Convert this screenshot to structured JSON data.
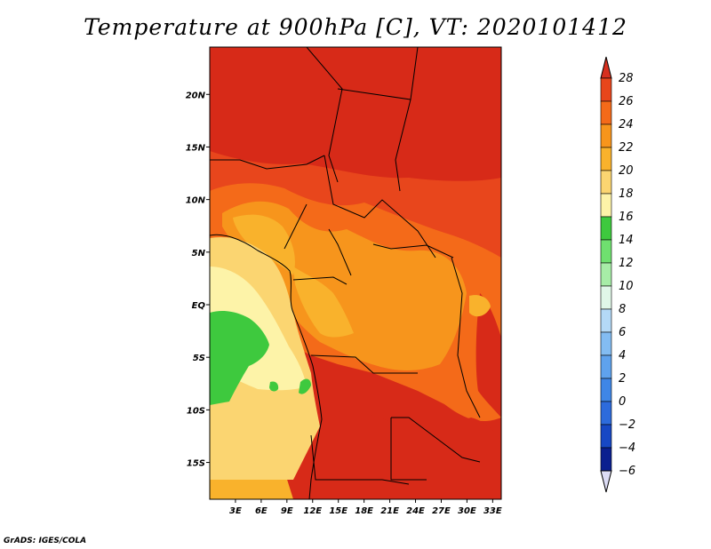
{
  "title": "Temperature at 900hPa [C], VT: 2020101412",
  "credit": "GrADS: IGES/COLA",
  "map": {
    "lat_ticks": [
      "20N",
      "15N",
      "10N",
      "5N",
      "EQ",
      "5S",
      "10S",
      "15S"
    ],
    "lon_ticks": [
      "3E",
      "6E",
      "9E",
      "12E",
      "15E",
      "18E",
      "21E",
      "24E",
      "27E",
      "30E",
      "33E"
    ],
    "lat_values": [
      20,
      15,
      10,
      5,
      0,
      -5,
      -10,
      -15
    ],
    "lon_values": [
      3,
      6,
      9,
      12,
      15,
      18,
      21,
      24,
      27,
      30,
      33
    ],
    "lon_range": [
      0,
      34
    ],
    "lat_range": [
      -18.5,
      24.5
    ]
  },
  "colorbar": {
    "labels": [
      "28",
      "26",
      "24",
      "22",
      "20",
      "18",
      "16",
      "14",
      "12",
      "10",
      "8",
      "6",
      "4",
      "2",
      "0",
      "−2",
      "−4",
      "−6"
    ],
    "colors": [
      "#d7301f",
      "#e8461c",
      "#f46a19",
      "#f7951c",
      "#f9b22c",
      "#fbd571",
      "#fdf3a8",
      "#3ec93e",
      "#6fe06f",
      "#a7eda7",
      "#e0f7e8",
      "#b4d9f7",
      "#83bcf2",
      "#5fa2ed",
      "#3f86e6",
      "#2d6bdc",
      "#1748c4",
      "#0a1f8f",
      "#08115c"
    ],
    "top_triangle_color": "#d7301f",
    "bottom_triangle_color": "#dcdcf5"
  }
}
